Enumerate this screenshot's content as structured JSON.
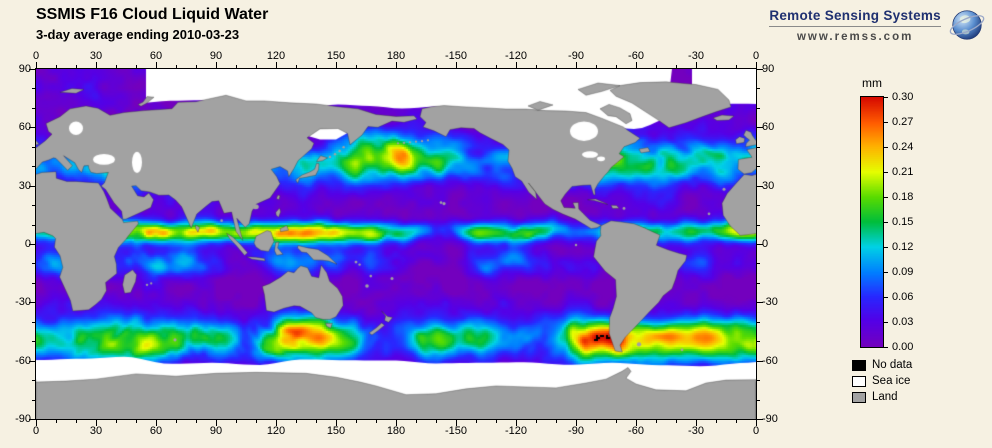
{
  "header": {
    "title": "SSMIS F16 Cloud Liquid Water",
    "subtitle": "3-day average ending 2010-03-23",
    "logo_text": "Remote Sensing Systems",
    "logo_url": "www.remss.com"
  },
  "map_axes": {
    "lon_labels": [
      "0",
      "30",
      "60",
      "90",
      "120",
      "150",
      "180",
      "-150",
      "-120",
      "-90",
      "-60",
      "-30",
      "0"
    ],
    "lat_labels": [
      "90",
      "60",
      "30",
      "0",
      "-30",
      "-60",
      "-90"
    ]
  },
  "colorbar": {
    "units": "mm",
    "tick_labels": [
      "0.30",
      "0.27",
      "0.24",
      "0.21",
      "0.18",
      "0.15",
      "0.12",
      "0.09",
      "0.06",
      "0.03",
      "0.00"
    ]
  },
  "legend": {
    "items": [
      {
        "label": "No data",
        "color": "#000000"
      },
      {
        "label": "Sea ice",
        "color": "#FFFFFF"
      },
      {
        "label": "Land",
        "color": "#A2A2A2"
      }
    ]
  },
  "colors": {
    "background": "#F6F1E2",
    "land": "#A2A2A2",
    "sea_ice": "#FFFFFF",
    "no_data": "#000000",
    "frame": "#000000",
    "logo_text": "#1F3070"
  }
}
